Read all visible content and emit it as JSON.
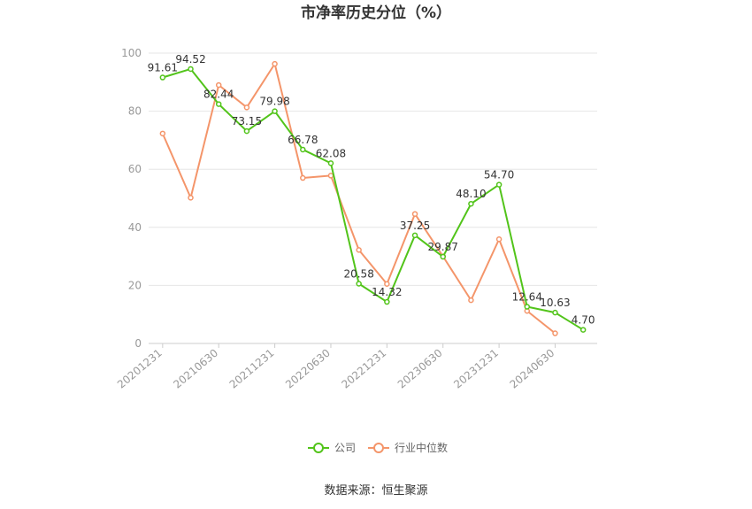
{
  "chart_data": {
    "type": "line",
    "title": "市净率历史分位（%）",
    "source": "数据来源：恒生聚源",
    "x": [
      "20201231",
      "20210331",
      "20210630",
      "20210930",
      "20211231",
      "20220331",
      "20220630",
      "20220930",
      "20221231",
      "20230331",
      "20230630",
      "20230930",
      "20231231",
      "20240331",
      "20240630",
      "20240930"
    ],
    "x_tick_labels": [
      "20201231",
      "20210630",
      "20211231",
      "20220630",
      "20221231",
      "20230630",
      "20231231",
      "20240630"
    ],
    "ylim": [
      0,
      100
    ],
    "y_ticks": [
      0,
      20,
      40,
      60,
      80,
      100
    ],
    "grid": true,
    "legend_position": "bottom",
    "series": [
      {
        "name": "公司",
        "color": "#52c41a",
        "values": [
          91.61,
          94.52,
          82.44,
          73.15,
          79.98,
          66.78,
          62.08,
          20.58,
          14.32,
          37.25,
          29.87,
          48.1,
          54.7,
          12.64,
          10.63,
          4.7
        ],
        "labels": [
          "91.61",
          "94.52",
          "82.44",
          "73.15",
          "79.98",
          "66.78",
          "62.08",
          "20.58",
          "14.32",
          "37.25",
          "29.87",
          "48.10",
          "54.70",
          "12.64",
          "10.63",
          "4.70"
        ]
      },
      {
        "name": "行业中位数",
        "color": "#f4956a",
        "values": [
          72.3,
          50.2,
          89.0,
          81.3,
          96.3,
          57.0,
          57.8,
          32.2,
          20.5,
          44.6,
          30.0,
          14.9,
          35.9,
          11.2,
          3.5,
          null
        ]
      }
    ]
  }
}
